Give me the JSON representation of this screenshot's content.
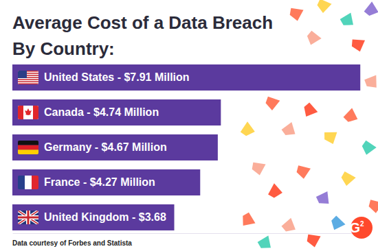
{
  "chart_data": {
    "type": "bar",
    "orientation": "horizontal",
    "title": "Average Cost of a Data Breach",
    "subtitle": "By Country:",
    "categories": [
      "United States - $7.91 Million",
      "Canada - $4.74 Million",
      "Germany - $4.67 Million",
      "France - $4.27 Million",
      "United Kingdom - $3.68"
    ],
    "values": [
      7.91,
      4.74,
      4.67,
      4.27,
      3.68
    ],
    "color": "#5b3a9e",
    "xlim": [
      0,
      8
    ],
    "xticks": [],
    "tick_labels": "y",
    "data_labels": false,
    "grid": false,
    "annotations": [
      "Data courtesy of Forbes and Statista",
      "G2"
    ]
  }
}
